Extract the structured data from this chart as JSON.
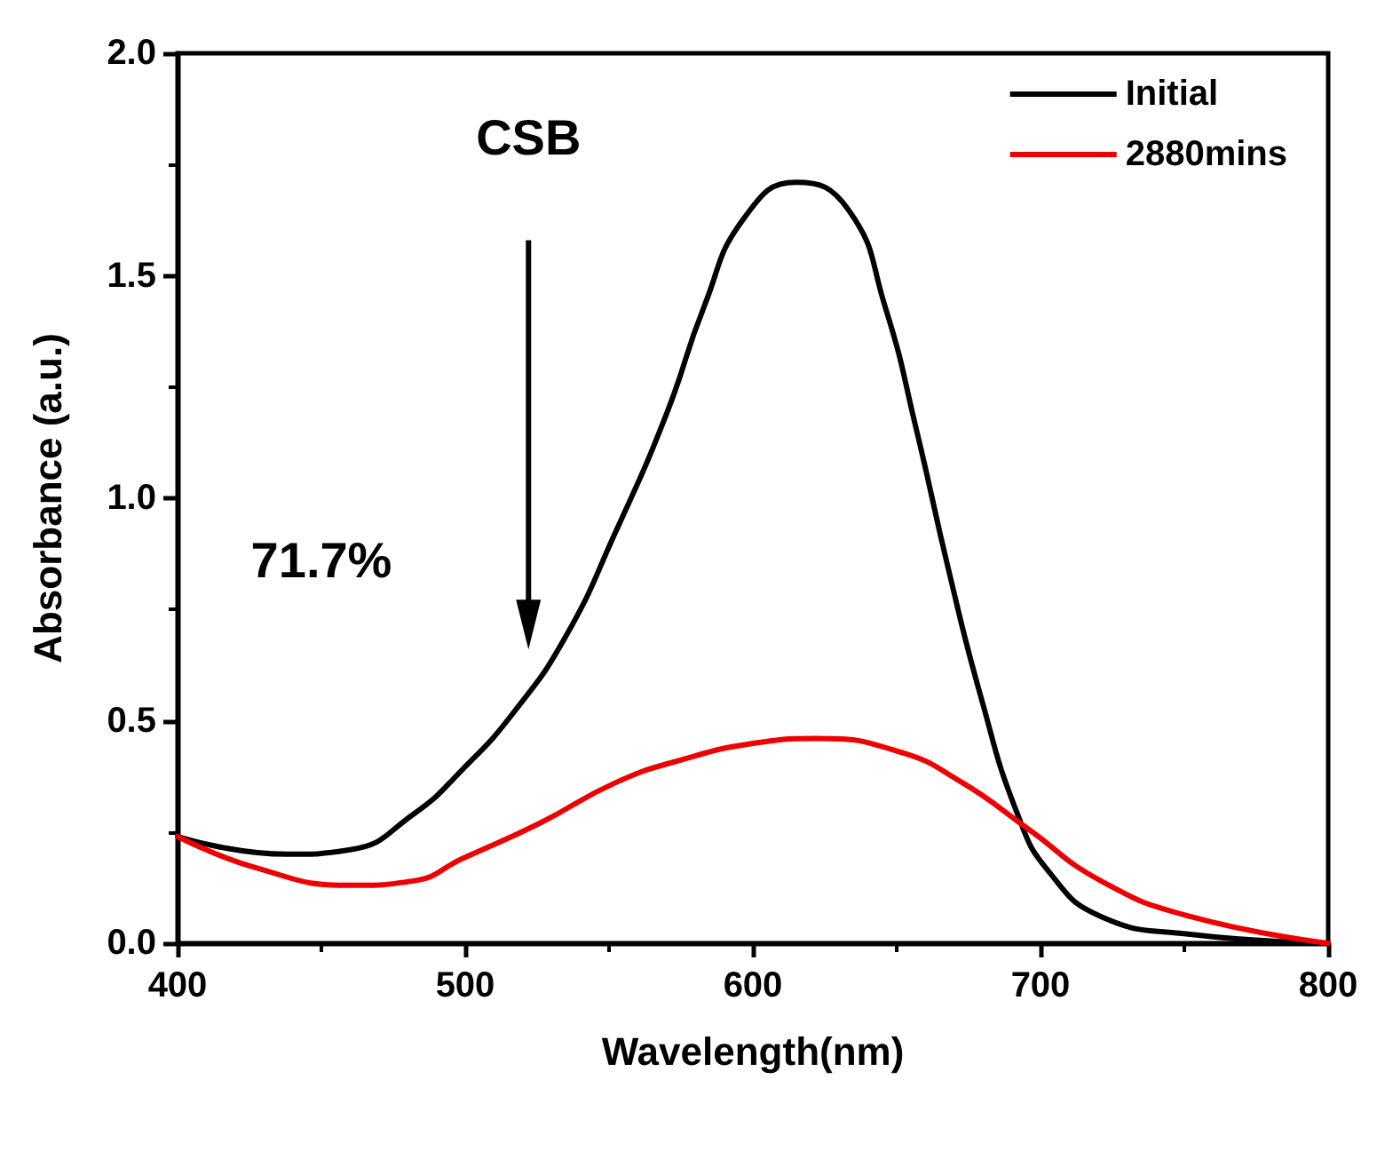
{
  "chart_data": {
    "type": "line",
    "xlabel": "Wavelength(nm)",
    "ylabel": "Absorbance (a.u.)",
    "annotations": [
      "CSB",
      "71.7%"
    ],
    "xlim": [
      400,
      800
    ],
    "xticks": [
      400,
      500,
      600,
      700,
      800
    ],
    "ylim": [
      0,
      2
    ],
    "yticks": [
      {
        "value": 0,
        "label": "0.0"
      },
      {
        "value": 0.5,
        "label": "0.5"
      },
      {
        "value": 1,
        "label": "1.0"
      },
      {
        "value": 1.5,
        "label": "1.5"
      },
      {
        "value": 2,
        "label": "2.0"
      }
    ],
    "grid": false,
    "legend": "top right",
    "marker": "none",
    "line_style": "solid",
    "series": [
      {
        "name": "Initial",
        "color": "#000000",
        "x": [
          400,
          438,
          460,
          482,
          499,
          517,
          535,
          552,
          570,
          583,
          597,
          615,
          633,
          646,
          657,
          668,
          679,
          692,
          703,
          721,
          752,
          800
        ],
        "values": [
          0.24,
          0.2,
          0.21,
          0.29,
          0.39,
          0.52,
          0.69,
          0.92,
          1.19,
          1.43,
          1.63,
          1.71,
          1.65,
          1.43,
          1.15,
          0.84,
          0.56,
          0.29,
          0.16,
          0.06,
          0.02,
          0.0
        ]
      },
      {
        "name": "2880mins",
        "color": "#ee0000",
        "x": [
          400,
          427,
          460,
          482,
          499,
          526,
          552,
          574,
          601,
          622,
          651,
          673,
          695,
          721,
          752,
          800
        ],
        "values": [
          0.24,
          0.17,
          0.13,
          0.14,
          0.19,
          0.27,
          0.36,
          0.41,
          0.45,
          0.46,
          0.43,
          0.36,
          0.26,
          0.14,
          0.06,
          0.0
        ]
      }
    ]
  }
}
